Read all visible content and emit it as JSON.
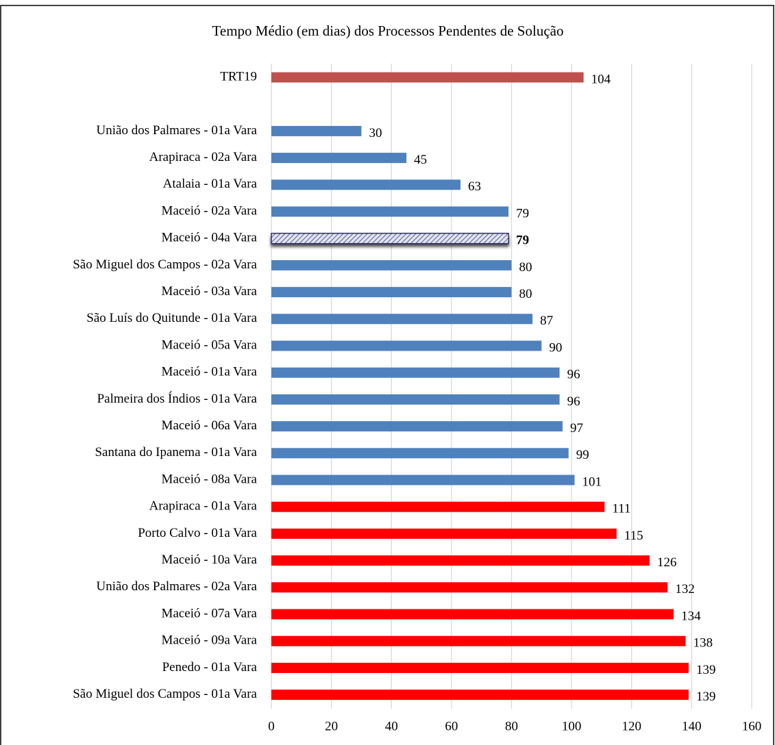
{
  "chart_data": {
    "type": "bar",
    "orientation": "horizontal",
    "title": "Tempo Médio (em dias) dos Processos Pendentes de Solução",
    "categories": [
      "TRT19",
      null,
      "União dos Palmares - 01a Vara",
      "Arapiraca - 02a Vara",
      "Atalaia - 01a Vara",
      "Maceió - 02a Vara",
      "Maceió - 04a Vara",
      "São Miguel dos Campos - 02a Vara",
      "Maceió - 03a Vara",
      "São Luís do Quitunde - 01a Vara",
      "Maceió - 05a Vara",
      "Maceió - 01a Vara",
      "Palmeira dos Índios - 01a Vara",
      "Maceió - 06a Vara",
      "Santana do Ipanema - 01a Vara",
      "Maceió - 08a Vara",
      "Arapiraca - 01a Vara",
      "Porto Calvo - 01a Vara",
      "Maceió - 10a Vara",
      "União dos Palmares - 02a Vara",
      "Maceió - 07a Vara",
      "Maceió - 09a Vara",
      "Penedo - 01a Vara",
      "São Miguel dos Campos - 01a Vara"
    ],
    "values": [
      104,
      null,
      30,
      45,
      63,
      79,
      79,
      80,
      80,
      87,
      90,
      96,
      96,
      97,
      99,
      101,
      111,
      115,
      126,
      132,
      134,
      138,
      139,
      139
    ],
    "colors": [
      "#c0504d",
      null,
      "#4f81bd",
      "#4f81bd",
      "#4f81bd",
      "#4f81bd",
      "#2e2e6e",
      "#4f81bd",
      "#4f81bd",
      "#4f81bd",
      "#4f81bd",
      "#4f81bd",
      "#4f81bd",
      "#4f81bd",
      "#4f81bd",
      "#4f81bd",
      "#ff0000",
      "#ff0000",
      "#ff0000",
      "#ff0000",
      "#ff0000",
      "#ff0000",
      "#ff0000",
      "#ff0000"
    ],
    "hatched": [
      false,
      false,
      false,
      false,
      false,
      false,
      true,
      false,
      false,
      false,
      false,
      false,
      false,
      false,
      false,
      false,
      false,
      false,
      false,
      false,
      false,
      false,
      false,
      false
    ],
    "xlim": [
      0,
      160
    ],
    "xticks": [
      0,
      20,
      40,
      60,
      80,
      100,
      120,
      140,
      160
    ],
    "grid": true
  }
}
